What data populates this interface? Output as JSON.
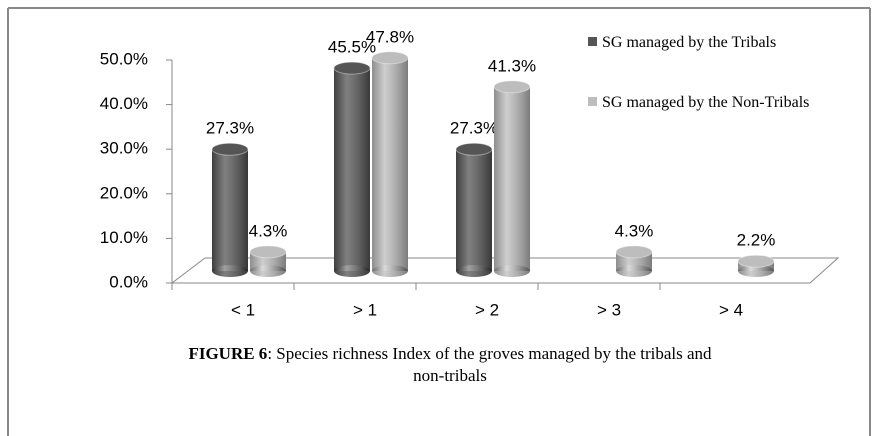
{
  "chart_data": {
    "type": "bar3d",
    "categories": [
      "< 1",
      "> 1",
      "> 2",
      "> 3",
      "> 4"
    ],
    "series": [
      {
        "name": "SG managed by the Tribals",
        "color": "#555555",
        "values": [
          27.3,
          45.5,
          27.3,
          null,
          null
        ],
        "value_labels": [
          "27.3%",
          "45.5%",
          "27.3%",
          null,
          null
        ]
      },
      {
        "name": "SG managed by the Non-Tribals",
        "color": "#bdbdbd",
        "values": [
          4.3,
          47.8,
          41.3,
          4.3,
          2.2
        ],
        "value_labels": [
          "4.3%",
          "47.8%",
          "41.3%",
          "4.3%",
          "2.2%"
        ]
      }
    ],
    "ylim": [
      0,
      50
    ],
    "yticks": [
      {
        "value": 0,
        "label": "0.0%"
      },
      {
        "value": 10,
        "label": "10.0%"
      },
      {
        "value": 20,
        "label": "20.0%"
      },
      {
        "value": 30,
        "label": "30.0%"
      },
      {
        "value": 40,
        "label": "40.0%"
      },
      {
        "value": 50,
        "label": "50.0%"
      }
    ],
    "caption_label": "FIGURE 6",
    "caption": ": Species richness Index of the groves managed by the tribals and non-tribals"
  }
}
